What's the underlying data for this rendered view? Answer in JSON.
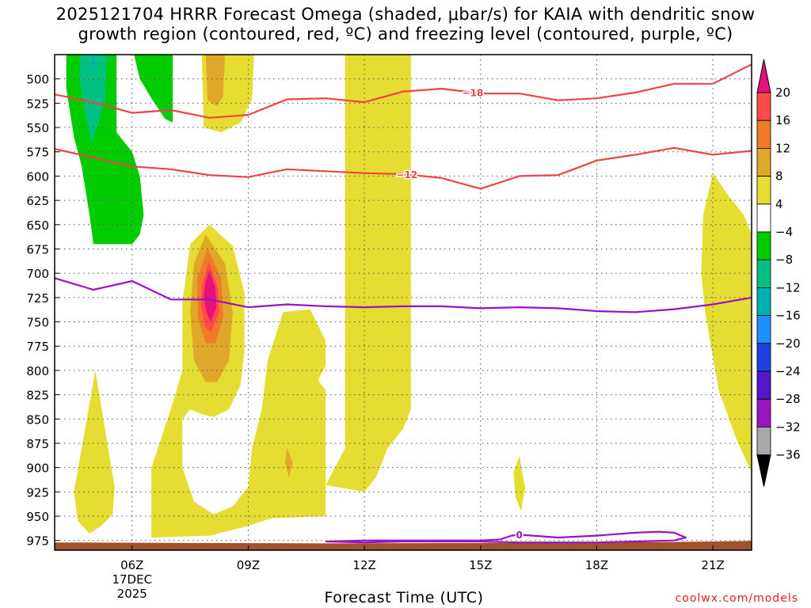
{
  "title": {
    "line1": "2025121704 HRRR Forecast Omega (shaded, μbar/s) for KAIA with dendritic snow",
    "line2": "growth region (contoured, red, ºC) and freezing level (contoured, purple, ºC)"
  },
  "credit": "coolwx.com/models",
  "chart_data": {
    "type": "heatmap",
    "title": "2025121704 HRRR Forecast Omega (shaded, μbar/s) for KAIA with dendritic snow growth region (contoured, red, ºC) and freezing level (contoured, purple, ºC)",
    "xlabel": "Forecast Time (UTC)",
    "ylabel": "",
    "x_hours_range": [
      4,
      22
    ],
    "x_ticks": [
      {
        "hour": 6,
        "label": "06Z",
        "sub1": "17DEC",
        "sub2": "2025"
      },
      {
        "hour": 9,
        "label": "09Z"
      },
      {
        "hour": 12,
        "label": "12Z"
      },
      {
        "hour": 15,
        "label": "15Z"
      },
      {
        "hour": 18,
        "label": "18Z"
      },
      {
        "hour": 21,
        "label": "21Z"
      }
    ],
    "y_pressure_range_mb": [
      475,
      985
    ],
    "y_ticks": [
      500,
      525,
      550,
      575,
      600,
      625,
      650,
      675,
      700,
      725,
      750,
      775,
      800,
      825,
      850,
      875,
      900,
      925,
      950,
      975
    ],
    "colorbar": {
      "levels": [
        "20",
        "16",
        "12",
        "8",
        "4",
        "−4",
        "−8",
        "−12",
        "−16",
        "−20",
        "−24",
        "−28",
        "−32",
        "−36"
      ],
      "colors": [
        "#ff4a4a",
        "#f07a2a",
        "#e0a828",
        "#e6dd33",
        "#ffffff",
        "#00cc00",
        "#00c280",
        "#00b0b0",
        "#1e90ff",
        "#2040dd",
        "#5018c8",
        "#9a14c4",
        "#a8a8a8"
      ],
      "top_arrow_color": "#e8107a",
      "bottom_arrow_color": "#000000"
    },
    "omega_regions": [
      {
        "name": "lift-band-12z",
        "range": "4 to 8",
        "color": "#e6dd33"
      },
      {
        "name": "lift-core-08z",
        "range": "4 to >20",
        "color": "#e6dd33"
      },
      {
        "name": "lift-band-10z",
        "range": "4 to 8",
        "color": "#e6dd33"
      },
      {
        "name": "lift-band-21z",
        "range": "4 to 8",
        "color": "#e6dd33"
      },
      {
        "name": "lift-spot-05z",
        "range": "4 to 8",
        "color": "#e6dd33"
      },
      {
        "name": "lift-spot-16z",
        "range": "4 to 8",
        "color": "#e6dd33"
      },
      {
        "name": "sink-band-05z",
        "range": "-4 to -12",
        "color": "#00cc00"
      },
      {
        "name": "sink-band-07z",
        "range": "-4 to -8",
        "color": "#00cc00"
      }
    ],
    "series": [
      {
        "name": "-18C isotherm",
        "label": "−18",
        "color": "#ee4444",
        "points": [
          [
            4,
            516
          ],
          [
            5,
            524
          ],
          [
            6,
            535
          ],
          [
            7,
            532
          ],
          [
            8,
            540
          ],
          [
            9,
            537
          ],
          [
            10,
            521
          ],
          [
            11,
            520
          ],
          [
            12,
            524
          ],
          [
            13,
            513
          ],
          [
            14,
            510
          ],
          [
            15,
            515
          ],
          [
            16,
            515
          ],
          [
            17,
            522
          ],
          [
            18,
            520
          ],
          [
            19,
            514
          ],
          [
            20,
            505
          ],
          [
            21,
            505
          ],
          [
            22,
            485
          ]
        ],
        "label_hour": 14.8
      },
      {
        "name": "-12C isotherm",
        "label": "−12",
        "color": "#ee4444",
        "points": [
          [
            4,
            572
          ],
          [
            5,
            581
          ],
          [
            6,
            590
          ],
          [
            7,
            593
          ],
          [
            8,
            599
          ],
          [
            9,
            601
          ],
          [
            10,
            593
          ],
          [
            11,
            595
          ],
          [
            12,
            597
          ],
          [
            13,
            598
          ],
          [
            14,
            602
          ],
          [
            15,
            613
          ],
          [
            16,
            600
          ],
          [
            17,
            599
          ],
          [
            18,
            584
          ],
          [
            19,
            578
          ],
          [
            20,
            571
          ],
          [
            21,
            578
          ],
          [
            22,
            574
          ]
        ],
        "label_hour": 13.1
      },
      {
        "name": "0C freezing level",
        "label": "0",
        "color": "#9a12c6",
        "points": [
          [
            4,
            705
          ],
          [
            5,
            717
          ],
          [
            6,
            708
          ],
          [
            7,
            727
          ],
          [
            8,
            727
          ],
          [
            9,
            735
          ],
          [
            10,
            732
          ],
          [
            11,
            734
          ],
          [
            12,
            735
          ],
          [
            13,
            734
          ],
          [
            14,
            734
          ],
          [
            15,
            736
          ],
          [
            16,
            735
          ],
          [
            17,
            736
          ],
          [
            18,
            739
          ],
          [
            19,
            740
          ],
          [
            20,
            737
          ],
          [
            21,
            732
          ],
          [
            22,
            725
          ]
        ],
        "label_hour": null
      },
      {
        "name": "0C near surface",
        "label": "0",
        "color": "#9a12c6",
        "points": [
          [
            11,
            976
          ],
          [
            12,
            975
          ],
          [
            13,
            975
          ],
          [
            14,
            975
          ],
          [
            15,
            975
          ],
          [
            15.5,
            974
          ],
          [
            15.8,
            970
          ],
          [
            16,
            969
          ],
          [
            17,
            972
          ],
          [
            18,
            970
          ],
          [
            19,
            967
          ],
          [
            19.6,
            966
          ],
          [
            20,
            967
          ],
          [
            20.3,
            972
          ],
          [
            20,
            975
          ],
          [
            19,
            976
          ],
          [
            18,
            977
          ],
          [
            17,
            977
          ],
          [
            16,
            977
          ],
          [
            15,
            976
          ],
          [
            14,
            976
          ],
          [
            13,
            976
          ],
          [
            12,
            977
          ],
          [
            11,
            976
          ]
        ],
        "label_hour": 16
      }
    ],
    "terrain_top_mb": 977,
    "terrain_color": "#a0522d"
  }
}
